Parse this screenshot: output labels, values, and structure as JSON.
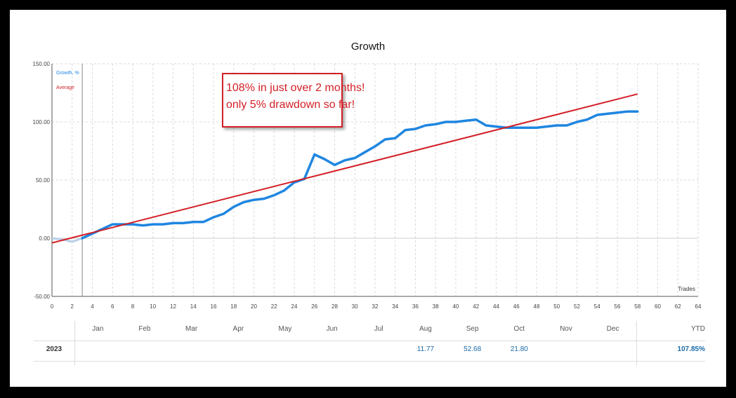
{
  "chart_data": {
    "type": "line",
    "title": "Growth",
    "xlabel": "Trades",
    "ylabel": "",
    "xlim": [
      0,
      64
    ],
    "ylim": [
      -50,
      150
    ],
    "x_ticks": [
      "0",
      "2",
      "4",
      "6",
      "8",
      "10",
      "12",
      "14",
      "16",
      "18",
      "20",
      "22",
      "24",
      "26",
      "28",
      "30",
      "32",
      "34",
      "36",
      "38",
      "40",
      "42",
      "44",
      "46",
      "48",
      "50",
      "52",
      "54",
      "56",
      "58",
      "60",
      "62",
      "64"
    ],
    "y_ticks": [
      "150.00",
      "100.00",
      "50.00",
      "0.00",
      "-50.00"
    ],
    "grid": true,
    "legend_position": "top-left",
    "series": [
      {
        "name": "Growth, %",
        "color": "#1f86e0",
        "x": [
          0,
          1,
          2,
          3,
          4,
          5,
          6,
          7,
          8,
          9,
          10,
          11,
          12,
          13,
          14,
          15,
          16,
          17,
          18,
          19,
          20,
          21,
          22,
          23,
          24,
          25,
          26,
          27,
          28,
          29,
          30,
          31,
          32,
          33,
          34,
          35,
          36,
          37,
          38,
          39,
          40,
          41,
          42,
          43,
          44,
          45,
          46,
          47,
          48,
          49,
          50,
          51,
          52,
          53,
          54,
          55,
          56,
          57,
          58
        ],
        "y": [
          0,
          -1,
          -3,
          0,
          4,
          8,
          12,
          12,
          12,
          11,
          12,
          12,
          13,
          13,
          14,
          14,
          18,
          21,
          27,
          31,
          33,
          34,
          37,
          41,
          48,
          51,
          72,
          68,
          63,
          67,
          69,
          74,
          79,
          85,
          86,
          93,
          94,
          97,
          98,
          100,
          100,
          101,
          102,
          97,
          96,
          95,
          95,
          95,
          95,
          96,
          97,
          97,
          100,
          102,
          106,
          107,
          108,
          109,
          109
        ],
        "faded_until_x": 3
      },
      {
        "name": "Average",
        "color": "#d21f26",
        "x": [
          0,
          58
        ],
        "y": [
          -4,
          124
        ]
      }
    ],
    "vertical_marker_x": 3,
    "annotation": {
      "lines": [
        "108% in just over 2 months!",
        "only 5% drawdown so far!"
      ],
      "color": "#d21f26"
    }
  },
  "months_table": {
    "months": [
      "Jan",
      "Feb",
      "Mar",
      "Apr",
      "May",
      "Jun",
      "Jul",
      "Aug",
      "Sep",
      "Oct",
      "Nov",
      "Dec"
    ],
    "ytd_label": "YTD",
    "rows": [
      {
        "year": "2023",
        "values": [
          "",
          "",
          "",
          "",
          "",
          "",
          "",
          "11.77",
          "52.68",
          "21.80",
          "",
          ""
        ],
        "ytd": "107.85%"
      }
    ]
  }
}
